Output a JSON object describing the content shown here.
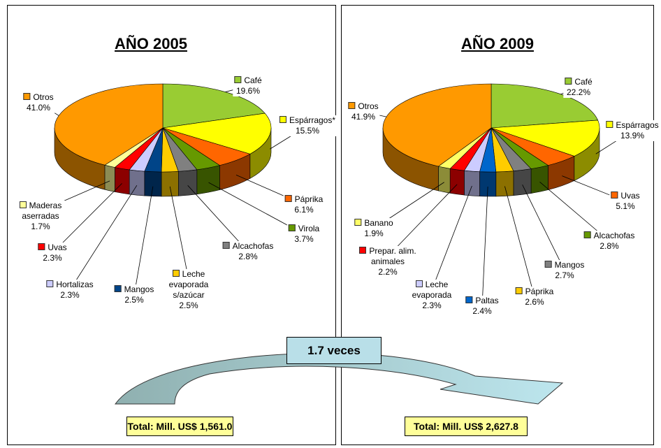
{
  "chart_data": [
    {
      "type": "pie",
      "title": "AÑO 2005",
      "categories": [
        "Café",
        "Espárragos*",
        "Páprika",
        "Virola",
        "Alcachofas",
        "Leche evaporada s/azúcar",
        "Mangos",
        "Hortalizas",
        "Uvas",
        "Maderas aserradas",
        "Otros"
      ],
      "values": [
        19.6,
        15.5,
        6.1,
        3.7,
        2.8,
        2.5,
        2.5,
        2.3,
        2.3,
        1.7,
        41.0
      ],
      "value_labels": [
        "19.6%",
        "15.5%",
        "6.1%",
        "3.7%",
        "2.8%",
        "2.5%",
        "2.5%",
        "2.3%",
        "2.3%",
        "1.7%",
        "41.0%"
      ],
      "colors": [
        "#99cc33",
        "#ffff00",
        "#ff6600",
        "#669900",
        "#808080",
        "#ffcc00",
        "#004488",
        "#ccccff",
        "#ff0000",
        "#ffff99",
        "#ff9900"
      ],
      "total": "Total: Mill. US$ 1,561.0"
    },
    {
      "type": "pie",
      "title": "AÑO 2009",
      "categories": [
        "Café",
        "Espárragos",
        "Uvas",
        "Alcachofas",
        "Mangos",
        "Páprika",
        "Paltas",
        "Leche evaporada",
        "Prepar. alim. animales",
        "Banano",
        "Otros"
      ],
      "values": [
        22.2,
        13.9,
        5.1,
        2.8,
        2.7,
        2.6,
        2.4,
        2.3,
        2.2,
        1.9,
        41.9
      ],
      "value_labels": [
        "22.2%",
        "13.9%",
        "5.1%",
        "2.8%",
        "2.7%",
        "2.6%",
        "2.4%",
        "2.3%",
        "2.2%",
        "1.9%",
        "41.9%"
      ],
      "colors": [
        "#99cc33",
        "#ffff00",
        "#ff6600",
        "#669900",
        "#808080",
        "#ffcc00",
        "#0066cc",
        "#ccccff",
        "#ff0000",
        "#ffff66",
        "#ff9900"
      ],
      "total": "Total: Mill. US$ 2,627.8"
    }
  ],
  "comparison": "1.7 veces"
}
